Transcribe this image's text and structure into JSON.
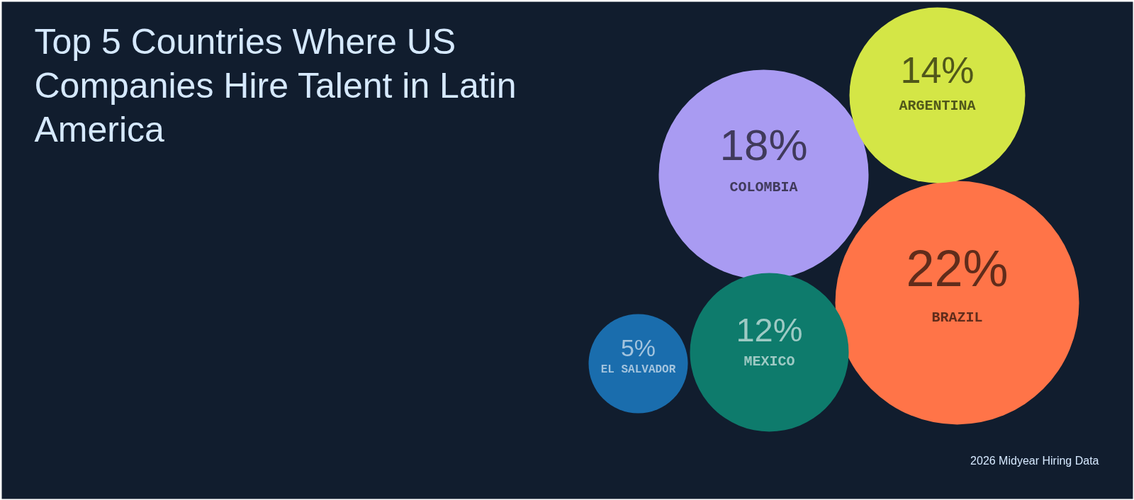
{
  "chart_data": {
    "type": "other",
    "title": "Top 5 Countries Where US Companies Hire Talent in Latin America",
    "categories": [
      "BRAZIL",
      "COLOMBIA",
      "ARGENTINA",
      "MEXICO",
      "EL SALVADOR"
    ],
    "values": [
      22,
      18,
      14,
      12,
      5
    ],
    "value_labels": [
      "22%",
      "18%",
      "14%",
      "12%",
      "5%"
    ],
    "colors": [
      "#ff7448",
      "#a99bf2",
      "#d4e646",
      "#0e7b6c",
      "#1a6dad"
    ],
    "annotations": [
      "2026 Midyear Hiring Data"
    ]
  }
}
